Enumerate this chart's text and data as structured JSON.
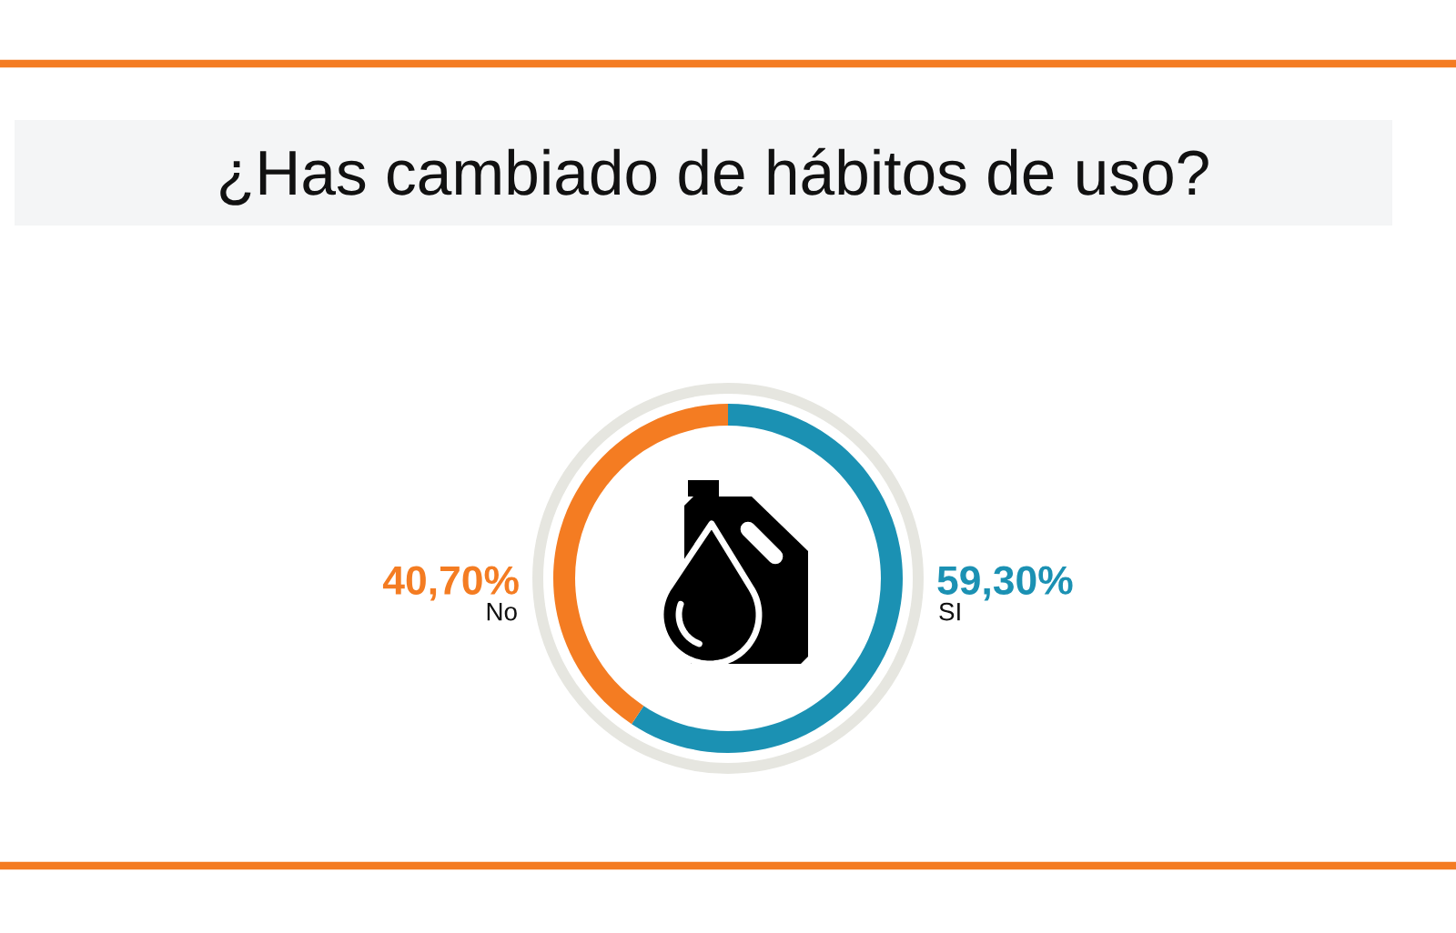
{
  "chart_data": {
    "type": "donut",
    "title": "¿Has cambiado de hábitos de uso?",
    "categories": [
      "SI",
      "No"
    ],
    "values": [
      59.3,
      40.7
    ],
    "colors": [
      "#1b91b3",
      "#f47c22"
    ],
    "value_labels": [
      "59,30%",
      "40,70%"
    ]
  }
}
